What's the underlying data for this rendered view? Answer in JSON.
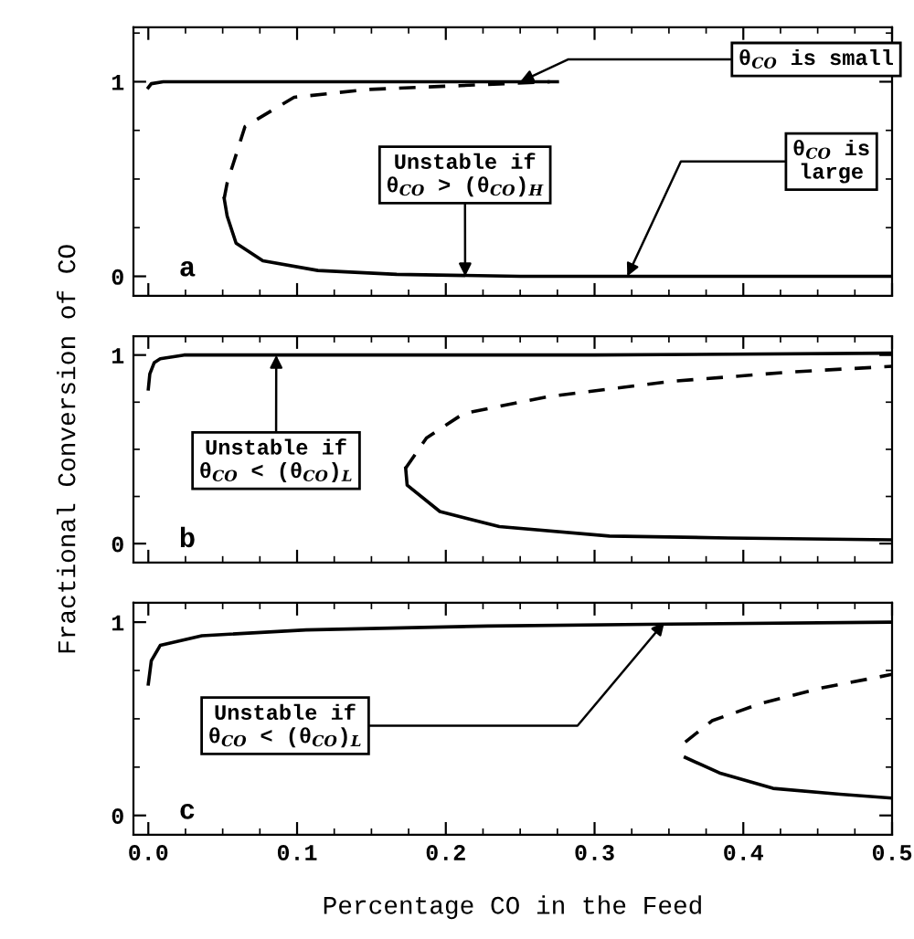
{
  "chart_data": [
    {
      "type": "line",
      "xlim": [
        -0.01,
        0.5
      ],
      "ylim": [
        -0.1,
        1.28
      ],
      "xticks": [
        0.0,
        0.1,
        0.2,
        0.3,
        0.4,
        0.5
      ],
      "yticks": [
        0,
        1
      ],
      "tick_labels": "y",
      "grid": false,
      "series": [
        {
          "color": "#000000",
          "line_style": "solid",
          "x": [
            0.0,
            0.002,
            0.01,
            0.05,
            0.1,
            0.2,
            0.275
          ],
          "values": [
            0.97,
            0.99,
            1.0,
            1.0,
            1.0,
            1.0,
            1.0
          ]
        },
        {
          "color": "#000000",
          "line_style": "dashed",
          "x": [
            0.051,
            0.053,
            0.065,
            0.098,
            0.147,
            0.21,
            0.27
          ],
          "values": [
            0.4,
            0.48,
            0.77,
            0.92,
            0.96,
            0.98,
            1.0
          ]
        },
        {
          "color": "#000000",
          "line_style": "solid",
          "x": [
            0.051,
            0.053,
            0.059,
            0.077,
            0.114,
            0.167,
            0.25,
            0.5
          ],
          "values": [
            0.4,
            0.31,
            0.17,
            0.08,
            0.03,
            0.01,
            0.0,
            0.0
          ]
        }
      ],
      "annotations": [
        {
          "text": "θ$_{CO}$ is small",
          "x": 0.25,
          "y": 1.0
        },
        {
          "text": "Unstable if\nθ$_{CO}$ > (θ$_{CO}$)$_{H}$",
          "x": 0.213,
          "y": 0.0
        },
        {
          "text": "θ$_{CO}$ is\nlarge",
          "x": 0.322,
          "y": 0.0
        },
        "a"
      ]
    },
    {
      "type": "line",
      "xlim": [
        -0.01,
        0.5
      ],
      "ylim": [
        -0.1,
        1.1
      ],
      "xticks": [
        0.0,
        0.1,
        0.2,
        0.3,
        0.4,
        0.5
      ],
      "yticks": [
        0,
        1
      ],
      "tick_labels": "y",
      "grid": false,
      "ylabel": "Fractional Conversion of CO",
      "series": [
        {
          "color": "#000000",
          "line_style": "solid",
          "x": [
            0.0,
            0.001,
            0.004,
            0.008,
            0.024,
            0.1,
            0.3,
            0.5
          ],
          "values": [
            0.82,
            0.9,
            0.96,
            0.98,
            1.0,
            1.0,
            1.0,
            1.01
          ]
        },
        {
          "color": "#000000",
          "line_style": "dashed",
          "x": [
            0.173,
            0.187,
            0.212,
            0.269,
            0.351,
            0.432,
            0.5
          ],
          "values": [
            0.4,
            0.56,
            0.69,
            0.78,
            0.86,
            0.91,
            0.94
          ]
        },
        {
          "color": "#000000",
          "line_style": "solid",
          "x": [
            0.173,
            0.174,
            0.196,
            0.236,
            0.31,
            0.39,
            0.5
          ],
          "values": [
            0.4,
            0.31,
            0.17,
            0.09,
            0.04,
            0.03,
            0.02
          ]
        }
      ],
      "annotations": [
        {
          "text": "Unstable if\nθ$_{CO}$ < (θ$_{CO}$)$_{L}$",
          "x": 0.086,
          "y": 1.0
        },
        "b"
      ]
    },
    {
      "type": "line",
      "xlim": [
        -0.01,
        0.5
      ],
      "ylim": [
        -0.1,
        1.1
      ],
      "xticks": [
        {
          "value": 0,
          "label": "0.0"
        },
        0.1,
        0.2,
        0.3,
        0.4,
        0.5
      ],
      "yticks": [
        0,
        1
      ],
      "grid": false,
      "xlabel": "Percentage CO in the Feed",
      "series": [
        {
          "color": "#000000",
          "line_style": "solid",
          "x": [
            0.0,
            0.001,
            0.002,
            0.008,
            0.036,
            0.106,
            0.228,
            0.35,
            0.5
          ],
          "values": [
            0.68,
            0.74,
            0.8,
            0.88,
            0.93,
            0.96,
            0.98,
            0.99,
            1.0
          ]
        },
        {
          "color": "#000000",
          "line_style": "dashed",
          "x": [
            0.361,
            0.379,
            0.412,
            0.453,
            0.5
          ],
          "values": [
            0.38,
            0.49,
            0.58,
            0.66,
            0.73
          ]
        },
        {
          "color": "#000000",
          "line_style": "solid",
          "x": [
            0.361,
            0.384,
            0.42,
            0.465,
            0.5
          ],
          "values": [
            0.3,
            0.22,
            0.14,
            0.11,
            0.09
          ]
        }
      ],
      "annotations": [
        {
          "text": "Unstable if\nθ$_{CO}$ < (θ$_{CO}$)$_{L}$",
          "x": 0.347,
          "y": 1.0
        },
        "c"
      ]
    }
  ]
}
